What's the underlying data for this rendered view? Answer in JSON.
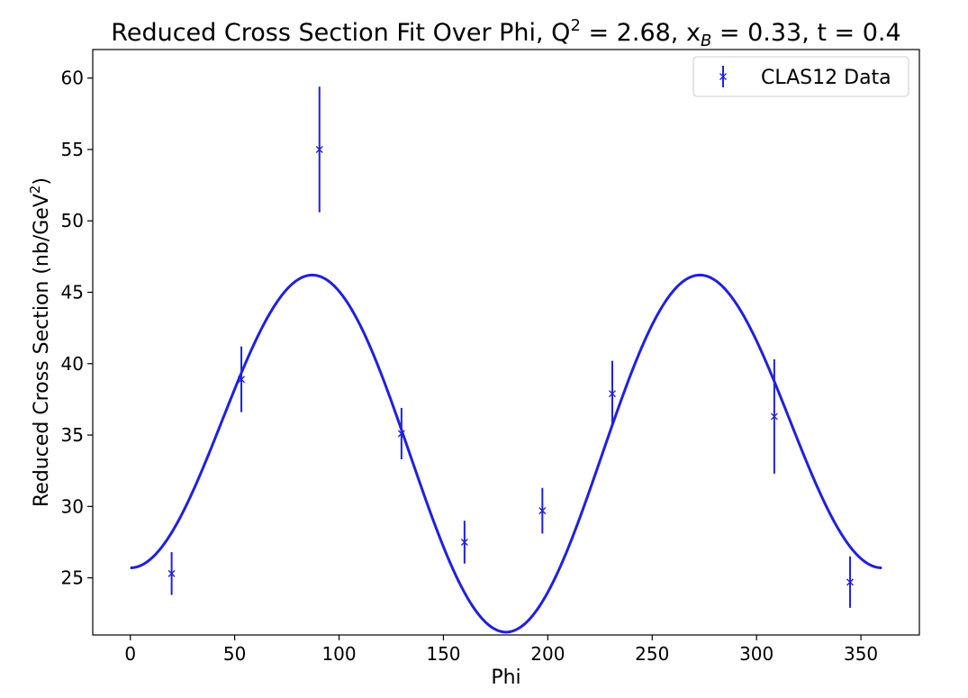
{
  "chart_data": {
    "type": "scatter",
    "title": {
      "prefix": "Reduced Cross Section Fit Over Phi, Q",
      "q_exp": "2",
      "mid": " = 2.68, x",
      "x_sub": "B",
      "suffix": " = 0.33, t = 0.4"
    },
    "xlabel": "Phi",
    "ylabel": {
      "prefix": "Reduced Cross Section (nb/GeV",
      "exp": "2",
      "suffix": ")"
    },
    "xlim": [
      -18,
      378
    ],
    "ylim": [
      21,
      62
    ],
    "x_ticks": [
      0,
      50,
      100,
      150,
      200,
      250,
      300,
      350
    ],
    "y_ticks": [
      25,
      30,
      35,
      40,
      45,
      50,
      55,
      60
    ],
    "grid": false,
    "legend": {
      "position": "top-right"
    },
    "color": "#2020dd",
    "series": [
      {
        "name": "CLAS12 Data",
        "kind": "errorbar",
        "marker": "x",
        "x": [
          19.8,
          53.2,
          90.6,
          129.9,
          160.1,
          197.4,
          230.9,
          308.5,
          344.8
        ],
        "y": [
          25.3,
          38.9,
          55.0,
          35.1,
          27.5,
          29.7,
          37.9,
          36.3,
          24.7
        ],
        "yerr": [
          1.5,
          2.3,
          4.4,
          1.8,
          1.5,
          1.6,
          2.3,
          4.0,
          1.8
        ]
      },
      {
        "kind": "fit",
        "model": {
          "A": 34.8,
          "B": 2.25,
          "C": -11.35
        }
      }
    ]
  }
}
